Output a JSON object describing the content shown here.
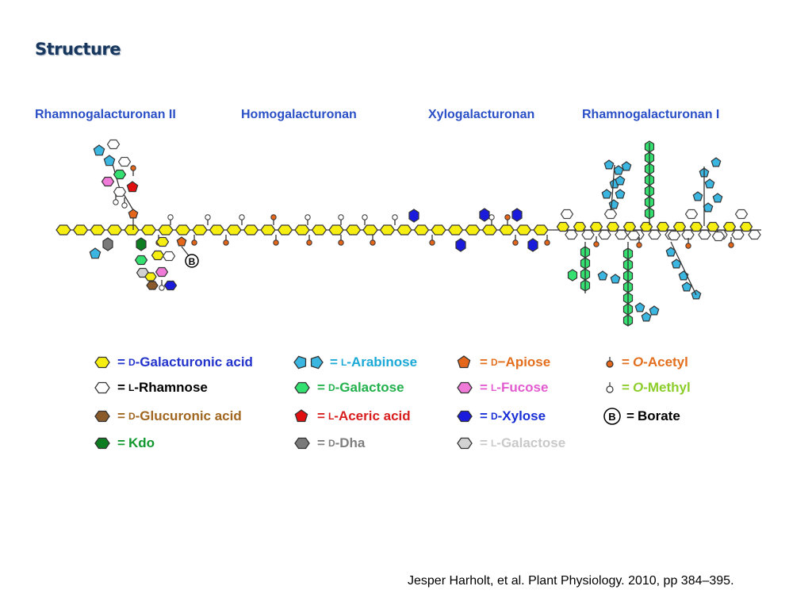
{
  "title": "Structure",
  "regions": [
    "Rhamnogalacturonan II",
    "Homogalacturonan",
    "Xylogalacturonan",
    "Rhamnogalacturonan I"
  ],
  "legend": [
    {
      "key": "galacturonic",
      "prefix": "D",
      "name": "-Galacturonic acid",
      "color": "#2233cc",
      "fill": "#f6ee10",
      "shape": "hex"
    },
    {
      "key": "arabinose",
      "prefix": "L",
      "name": "-Arabinose",
      "color": "#1aa9d6",
      "fill": "#3ab6e0",
      "shape": "penta2"
    },
    {
      "key": "apiose",
      "prefix": "D",
      "name": "−Apiose",
      "color": "#e36f1e",
      "fill": "#e4661a",
      "shape": "penta"
    },
    {
      "key": "acetyl",
      "prefix": "O",
      "name": "-Acetyl",
      "color": "#e36f1e",
      "fill": "#e4661a",
      "shape": "pin"
    },
    {
      "key": "rhamnose",
      "prefix": "L",
      "name": "-Rhamnose",
      "color": "#000000",
      "fill": "#ffffff",
      "shape": "hex"
    },
    {
      "key": "galactose",
      "prefix": "D",
      "name": "-Galactose",
      "color": "#22b14c",
      "fill": "#33e070",
      "shape": "hex"
    },
    {
      "key": "fucose",
      "prefix": "L",
      "name": "-Fucose",
      "color": "#e25ccf",
      "fill": "#f07ad8",
      "shape": "hex"
    },
    {
      "key": "methyl",
      "prefix": "O",
      "name": "-Methyl",
      "color": "#8ccd2a",
      "fill": "#ffffff",
      "shape": "pin"
    },
    {
      "key": "glucuronic",
      "prefix": "D",
      "name": "-Glucuronic acid",
      "color": "#a0651e",
      "fill": "#8b5a2b",
      "shape": "hex"
    },
    {
      "key": "aceric",
      "prefix": "L",
      "name": "-Aceric acid",
      "color": "#d81e1e",
      "fill": "#e01010",
      "shape": "penta"
    },
    {
      "key": "xylose",
      "prefix": "D",
      "name": "-Xylose",
      "color": "#1a2fd6",
      "fill": "#1b1bdc",
      "shape": "hex"
    },
    {
      "key": "borate",
      "prefix": "",
      "name": "Borate",
      "color": "#000000",
      "fill": "#ffffff",
      "shape": "circleB"
    },
    {
      "key": "kdo",
      "prefix": "",
      "name": "Kdo",
      "color": "#119930",
      "fill": "#0e7d22",
      "shape": "hex"
    },
    {
      "key": "dha",
      "prefix": "D",
      "name": "-Dha",
      "color": "#7f7f7f",
      "fill": "#7a7a7a",
      "shape": "hex"
    },
    {
      "key": "lgalactose",
      "prefix": "L",
      "name": "-Galactose",
      "color": "#c9c9c9",
      "fill": "#d2d2d2",
      "shape": "hex"
    }
  ],
  "borate_symbol": "B",
  "citation": "Jesper Harholt, et al. Plant Physiology. 2010, pp 384–395."
}
